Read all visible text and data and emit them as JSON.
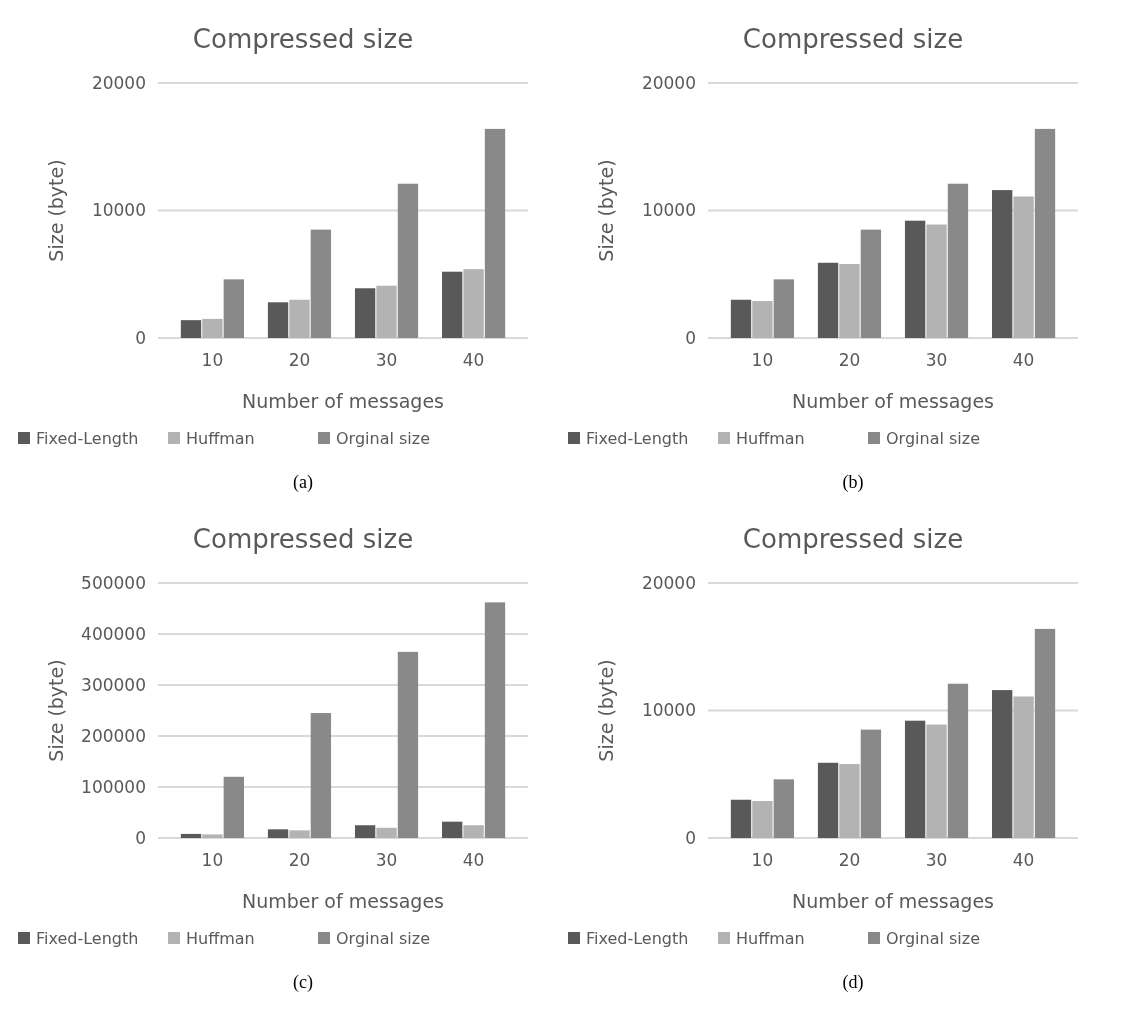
{
  "chart_data": [
    {
      "type": "bar",
      "title": "Compressed size",
      "xlabel": "Number of messages",
      "ylabel": "Size (byte)",
      "categories": [
        "10",
        "20",
        "30",
        "40"
      ],
      "series": [
        {
          "name": "Fixed-Length",
          "color": "#595959",
          "values": [
            1400,
            2800,
            3900,
            5200
          ]
        },
        {
          "name": "Huffman",
          "color": "#b3b3b3",
          "values": [
            1500,
            3000,
            4100,
            5400
          ]
        },
        {
          "name": "Orginal size",
          "color": "#898989",
          "values": [
            4600,
            8500,
            12100,
            16400
          ]
        }
      ],
      "ylim": [
        0,
        20000
      ],
      "yticks": [
        0,
        10000,
        20000
      ],
      "grid": "y",
      "legend": "bottom",
      "annotations": [
        "(a)"
      ]
    },
    {
      "type": "bar",
      "title": "Compressed size",
      "xlabel": "Number of messages",
      "ylabel": "Size (byte)",
      "categories": [
        "10",
        "20",
        "30",
        "40"
      ],
      "series": [
        {
          "name": "Fixed-Length",
          "color": "#595959",
          "values": [
            3000,
            5900,
            9200,
            11600
          ]
        },
        {
          "name": "Huffman",
          "color": "#b3b3b3",
          "values": [
            2900,
            5800,
            8900,
            11100
          ]
        },
        {
          "name": "Orginal size",
          "color": "#898989",
          "values": [
            4600,
            8500,
            12100,
            16400
          ]
        }
      ],
      "ylim": [
        0,
        20000
      ],
      "yticks": [
        0,
        10000,
        20000
      ],
      "grid": "y",
      "legend": "bottom",
      "annotations": [
        "(b)"
      ]
    },
    {
      "type": "bar",
      "title": "Compressed size",
      "xlabel": "Number of messages",
      "ylabel": "Size (byte)",
      "categories": [
        "10",
        "20",
        "30",
        "40"
      ],
      "series": [
        {
          "name": "Fixed-Length",
          "color": "#595959",
          "values": [
            8000,
            17000,
            25000,
            32000
          ]
        },
        {
          "name": "Huffman",
          "color": "#b3b3b3",
          "values": [
            7000,
            15000,
            20000,
            25000
          ]
        },
        {
          "name": "Orginal size",
          "color": "#898989",
          "values": [
            120000,
            245000,
            365000,
            462000
          ]
        }
      ],
      "ylim": [
        0,
        500000
      ],
      "yticks": [
        0,
        100000,
        200000,
        300000,
        400000,
        500000
      ],
      "grid": "y",
      "legend": "bottom",
      "annotations": [
        "(c)"
      ]
    },
    {
      "type": "bar",
      "title": "Compressed size",
      "xlabel": "Number of messages",
      "ylabel": "Size (byte)",
      "categories": [
        "10",
        "20",
        "30",
        "40"
      ],
      "series": [
        {
          "name": "Fixed-Length",
          "color": "#595959",
          "values": [
            3000,
            5900,
            9200,
            11600
          ]
        },
        {
          "name": "Huffman",
          "color": "#b3b3b3",
          "values": [
            2900,
            5800,
            8900,
            11100
          ]
        },
        {
          "name": "Orginal size",
          "color": "#898989",
          "values": [
            4600,
            8500,
            12100,
            16400
          ]
        }
      ],
      "ylim": [
        0,
        20000
      ],
      "yticks": [
        0,
        10000,
        20000
      ],
      "grid": "y",
      "legend": "bottom",
      "annotations": [
        "(d)"
      ]
    }
  ]
}
